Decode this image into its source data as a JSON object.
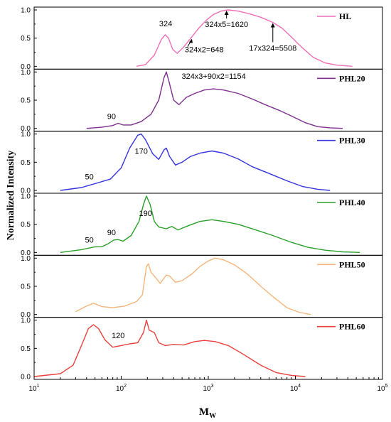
{
  "figure": {
    "ylabel": "Normalized Intensity",
    "xlabel": "M",
    "xlabel_sub": "W",
    "x_ticks": [
      {
        "value": 10,
        "base": "10",
        "exp": "1"
      },
      {
        "value": 100,
        "base": "10",
        "exp": "2"
      },
      {
        "value": 1000,
        "base": "10",
        "exp": "3"
      },
      {
        "value": 10000,
        "base": "10",
        "exp": "4"
      },
      {
        "value": 100000,
        "base": "10",
        "exp": "5"
      }
    ],
    "y_ticks": [
      "0.0",
      "0.5",
      "1.0"
    ]
  },
  "chart_data": [
    {
      "type": "line",
      "series_name": "HL",
      "color": "#ee6fb8",
      "x_scale": "log",
      "xlim": [
        10,
        100000
      ],
      "ylim": [
        0,
        1.0
      ],
      "points": [
        [
          150,
          0
        ],
        [
          190,
          0.03
        ],
        [
          240,
          0.2
        ],
        [
          290,
          0.48
        ],
        [
          320,
          0.56
        ],
        [
          350,
          0.5
        ],
        [
          390,
          0.3
        ],
        [
          440,
          0.23
        ],
        [
          520,
          0.34
        ],
        [
          630,
          0.5
        ],
        [
          780,
          0.68
        ],
        [
          950,
          0.82
        ],
        [
          1150,
          0.92
        ],
        [
          1400,
          0.98
        ],
        [
          1700,
          1.0
        ],
        [
          2200,
          0.98
        ],
        [
          3000,
          0.93
        ],
        [
          4000,
          0.87
        ],
        [
          5500,
          0.78
        ],
        [
          7000,
          0.68
        ],
        [
          9000,
          0.52
        ],
        [
          12000,
          0.33
        ],
        [
          16000,
          0.16
        ],
        [
          22000,
          0.06
        ],
        [
          30000,
          0.02
        ],
        [
          45000,
          0
        ]
      ],
      "annotations": [
        {
          "text": "324",
          "x": 324,
          "y": 0.56
        },
        {
          "text": "324x2=648",
          "x": 648,
          "y": 0.5
        },
        {
          "text": "324x5=1620",
          "x": 1620,
          "y": 1.0
        },
        {
          "text": "17x324=5508",
          "x": 5508,
          "y": 0.78
        }
      ]
    },
    {
      "type": "line",
      "series_name": "PHL20",
      "color": "#7e2f8e",
      "x_scale": "log",
      "xlim": [
        10,
        100000
      ],
      "ylim": [
        0,
        1.0
      ],
      "points": [
        [
          40,
          0
        ],
        [
          60,
          0.02
        ],
        [
          80,
          0.05
        ],
        [
          92,
          0.09
        ],
        [
          105,
          0.06
        ],
        [
          130,
          0.06
        ],
        [
          170,
          0.12
        ],
        [
          220,
          0.25
        ],
        [
          270,
          0.5
        ],
        [
          310,
          0.9
        ],
        [
          330,
          1.0
        ],
        [
          355,
          0.82
        ],
        [
          400,
          0.5
        ],
        [
          460,
          0.42
        ],
        [
          560,
          0.55
        ],
        [
          700,
          0.62
        ],
        [
          900,
          0.68
        ],
        [
          1150,
          0.7
        ],
        [
          1500,
          0.68
        ],
        [
          2200,
          0.62
        ],
        [
          3200,
          0.52
        ],
        [
          4500,
          0.42
        ],
        [
          6500,
          0.32
        ],
        [
          9000,
          0.22
        ],
        [
          13000,
          0.1
        ],
        [
          18000,
          0.03
        ],
        [
          25000,
          0.01
        ],
        [
          35000,
          0
        ]
      ],
      "annotations": [
        {
          "text": "90",
          "x": 90,
          "y": 0.09
        },
        {
          "text": "324x3+90x2=1154",
          "x": 1154,
          "y": 0.7
        }
      ]
    },
    {
      "type": "line",
      "series_name": "PHL30",
      "color": "#3333dd",
      "x_scale": "log",
      "xlim": [
        10,
        100000
      ],
      "ylim": [
        0,
        1.0
      ],
      "points": [
        [
          20,
          0
        ],
        [
          35,
          0.05
        ],
        [
          50,
          0.12
        ],
        [
          75,
          0.2
        ],
        [
          100,
          0.4
        ],
        [
          125,
          0.75
        ],
        [
          155,
          0.98
        ],
        [
          170,
          1.0
        ],
        [
          190,
          0.9
        ],
        [
          230,
          0.65
        ],
        [
          270,
          0.55
        ],
        [
          310,
          0.72
        ],
        [
          330,
          0.75
        ],
        [
          360,
          0.6
        ],
        [
          420,
          0.45
        ],
        [
          500,
          0.5
        ],
        [
          620,
          0.6
        ],
        [
          800,
          0.66
        ],
        [
          1100,
          0.7
        ],
        [
          1500,
          0.66
        ],
        [
          2200,
          0.56
        ],
        [
          3200,
          0.42
        ],
        [
          5000,
          0.3
        ],
        [
          8000,
          0.17
        ],
        [
          12000,
          0.07
        ],
        [
          18000,
          0.02
        ],
        [
          25000,
          0
        ]
      ],
      "annotations": [
        {
          "text": "50",
          "x": 50,
          "y": 0.12
        },
        {
          "text": "170",
          "x": 170,
          "y": 1.0
        }
      ]
    },
    {
      "type": "line",
      "series_name": "PHL40",
      "color": "#2aa02a",
      "x_scale": "log",
      "xlim": [
        10,
        100000
      ],
      "ylim": [
        0,
        1.0
      ],
      "points": [
        [
          20,
          0
        ],
        [
          35,
          0.05
        ],
        [
          50,
          0.1
        ],
        [
          60,
          0.1
        ],
        [
          70,
          0.15
        ],
        [
          82,
          0.22
        ],
        [
          92,
          0.23
        ],
        [
          105,
          0.2
        ],
        [
          130,
          0.3
        ],
        [
          160,
          0.55
        ],
        [
          180,
          0.85
        ],
        [
          195,
          1.0
        ],
        [
          215,
          0.85
        ],
        [
          240,
          0.55
        ],
        [
          270,
          0.45
        ],
        [
          330,
          0.42
        ],
        [
          380,
          0.46
        ],
        [
          450,
          0.4
        ],
        [
          600,
          0.48
        ],
        [
          800,
          0.55
        ],
        [
          1100,
          0.58
        ],
        [
          1500,
          0.55
        ],
        [
          2200,
          0.5
        ],
        [
          3500,
          0.4
        ],
        [
          5500,
          0.3
        ],
        [
          9000,
          0.18
        ],
        [
          14000,
          0.09
        ],
        [
          22000,
          0.04
        ],
        [
          35000,
          0.01
        ],
        [
          55000,
          0
        ]
      ],
      "annotations": [
        {
          "text": "50",
          "x": 50,
          "y": 0.1
        },
        {
          "text": "90",
          "x": 90,
          "y": 0.23
        },
        {
          "text": "190",
          "x": 190,
          "y": 1.0
        }
      ]
    },
    {
      "type": "line",
      "series_name": "PHL50",
      "color": "#f5b57a",
      "x_scale": "log",
      "xlim": [
        10,
        100000
      ],
      "ylim": [
        0,
        1.0
      ],
      "points": [
        [
          30,
          0.05
        ],
        [
          40,
          0.15
        ],
        [
          48,
          0.2
        ],
        [
          60,
          0.14
        ],
        [
          80,
          0.12
        ],
        [
          110,
          0.15
        ],
        [
          150,
          0.23
        ],
        [
          175,
          0.35
        ],
        [
          195,
          0.85
        ],
        [
          205,
          0.9
        ],
        [
          220,
          0.75
        ],
        [
          250,
          0.65
        ],
        [
          280,
          0.55
        ],
        [
          330,
          0.7
        ],
        [
          360,
          0.68
        ],
        [
          420,
          0.57
        ],
        [
          500,
          0.6
        ],
        [
          650,
          0.72
        ],
        [
          800,
          0.85
        ],
        [
          1000,
          0.95
        ],
        [
          1200,
          1.0
        ],
        [
          1500,
          0.97
        ],
        [
          2000,
          0.88
        ],
        [
          2800,
          0.72
        ],
        [
          4000,
          0.5
        ],
        [
          5500,
          0.32
        ],
        [
          8000,
          0.12
        ],
        [
          11000,
          0.04
        ],
        [
          15000,
          0
        ]
      ],
      "annotations": []
    },
    {
      "type": "line",
      "series_name": "PHL60",
      "color": "#e8403a",
      "x_scale": "log",
      "xlim": [
        10,
        100000
      ],
      "ylim": [
        0,
        1.0
      ],
      "points": [
        [
          10,
          0
        ],
        [
          20,
          0.05
        ],
        [
          28,
          0.2
        ],
        [
          35,
          0.55
        ],
        [
          42,
          0.85
        ],
        [
          48,
          0.92
        ],
        [
          55,
          0.85
        ],
        [
          65,
          0.65
        ],
        [
          80,
          0.52
        ],
        [
          100,
          0.55
        ],
        [
          125,
          0.58
        ],
        [
          155,
          0.6
        ],
        [
          180,
          0.78
        ],
        [
          195,
          1.0
        ],
        [
          210,
          0.82
        ],
        [
          240,
          0.78
        ],
        [
          270,
          0.6
        ],
        [
          320,
          0.55
        ],
        [
          400,
          0.57
        ],
        [
          520,
          0.56
        ],
        [
          700,
          0.62
        ],
        [
          900,
          0.64
        ],
        [
          1200,
          0.62
        ],
        [
          1700,
          0.55
        ],
        [
          2500,
          0.4
        ],
        [
          4000,
          0.2
        ],
        [
          6000,
          0.07
        ],
        [
          9000,
          0.02
        ],
        [
          13000,
          0
        ]
      ],
      "annotations": [
        {
          "text": "120",
          "x": 120,
          "y": 0.58
        }
      ]
    }
  ]
}
